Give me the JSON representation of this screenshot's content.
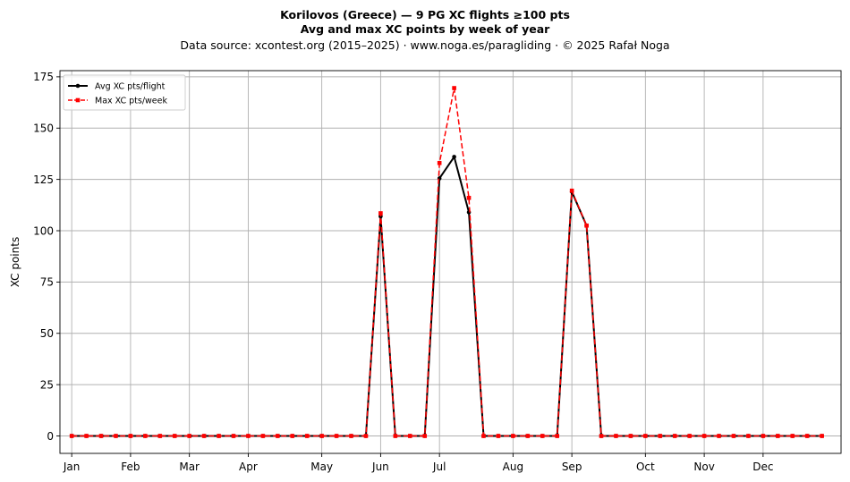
{
  "chart_data": {
    "type": "line",
    "title": "Korilovos (Greece)  —  9 PG XC flights ≥100 pts",
    "subtitle": "Avg and max XC points by week of year",
    "source_line": "Data source: xcontest.org (2015–2025)  ·  www.noga.es/paragliding  ·  © 2025 Rafał Noga",
    "xlabel": "",
    "ylabel": "XC points",
    "xlim": [
      0.2,
      53.3
    ],
    "ylim": [
      -8.5,
      178
    ],
    "yticks": [
      0,
      25,
      50,
      75,
      100,
      125,
      150,
      175
    ],
    "x_month_ticks": [
      {
        "label": "Jan",
        "week": 1
      },
      {
        "label": "Feb",
        "week": 5
      },
      {
        "label": "Mar",
        "week": 9
      },
      {
        "label": "Apr",
        "week": 13
      },
      {
        "label": "May",
        "week": 18
      },
      {
        "label": "Jun",
        "week": 22
      },
      {
        "label": "Jul",
        "week": 26
      },
      {
        "label": "Aug",
        "week": 31
      },
      {
        "label": "Sep",
        "week": 35
      },
      {
        "label": "Oct",
        "week": 40
      },
      {
        "label": "Nov",
        "week": 44
      },
      {
        "label": "Dec",
        "week": 48
      }
    ],
    "grid": true,
    "legend_position": "top-left",
    "weeks": [
      1,
      2,
      3,
      4,
      5,
      6,
      7,
      8,
      9,
      10,
      11,
      12,
      13,
      14,
      15,
      16,
      17,
      18,
      19,
      20,
      21,
      22,
      23,
      24,
      25,
      26,
      27,
      28,
      29,
      30,
      31,
      32,
      33,
      34,
      35,
      36,
      37,
      38,
      39,
      40,
      41,
      42,
      43,
      44,
      45,
      46,
      47,
      48,
      49,
      50,
      51,
      52
    ],
    "series": [
      {
        "name": "Avg XC pts/flight",
        "color": "#000000",
        "style": "solid",
        "marker": "circle",
        "values": [
          0,
          0,
          0,
          0,
          0,
          0,
          0,
          0,
          0,
          0,
          0,
          0,
          0,
          0,
          0,
          0,
          0,
          0,
          0,
          0,
          0,
          107,
          0,
          0,
          0,
          125.5,
          136,
          109,
          0,
          0,
          0,
          0,
          0,
          0,
          119,
          102.5,
          0,
          0,
          0,
          0,
          0,
          0,
          0,
          0,
          0,
          0,
          0,
          0,
          0,
          0,
          0,
          0
        ]
      },
      {
        "name": "Max XC pts/week",
        "color": "#ff0000",
        "style": "dashed",
        "marker": "square",
        "values": [
          0,
          0,
          0,
          0,
          0,
          0,
          0,
          0,
          0,
          0,
          0,
          0,
          0,
          0,
          0,
          0,
          0,
          0,
          0,
          0,
          0,
          108.5,
          0,
          0,
          0,
          133,
          169.5,
          116,
          0,
          0,
          0,
          0,
          0,
          0,
          119.5,
          102.5,
          0,
          0,
          0,
          0,
          0,
          0,
          0,
          0,
          0,
          0,
          0,
          0,
          0,
          0,
          0,
          0
        ]
      }
    ]
  }
}
